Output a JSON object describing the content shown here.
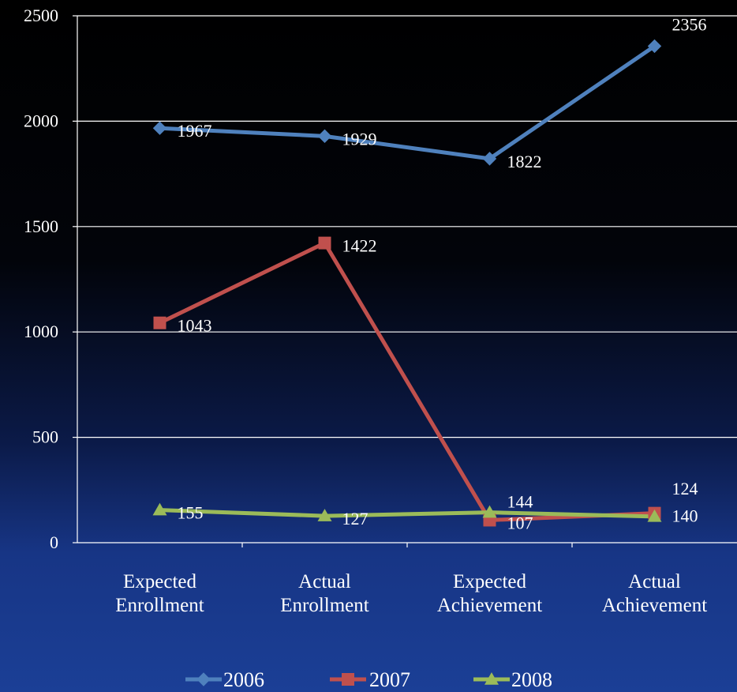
{
  "chart_data": {
    "type": "line",
    "categories": [
      [
        "Expected",
        "Enrollment"
      ],
      [
        "Actual",
        "Enrollment"
      ],
      [
        "Expected",
        "Achievement"
      ],
      [
        "Actual",
        "Achievement"
      ]
    ],
    "ylim": [
      0,
      2500
    ],
    "yticks": [
      "0",
      "500",
      "1000",
      "1500",
      "2000",
      "2500"
    ],
    "grid": true,
    "legend": "bottom",
    "series": [
      {
        "name": "2006",
        "values": [
          1967,
          1929,
          1822,
          2356
        ],
        "labels": [
          "1967",
          "1929",
          "1822",
          "2356"
        ],
        "color": "#4f81bd",
        "marker": "diamond"
      },
      {
        "name": "2007",
        "values": [
          1043,
          1422,
          107,
          140
        ],
        "labels": [
          "1043",
          "1422",
          "107",
          "140"
        ],
        "color": "#c0504d",
        "marker": "square"
      },
      {
        "name": "2008",
        "values": [
          155,
          127,
          144,
          124
        ],
        "labels": [
          "155",
          "127",
          "144",
          "124"
        ],
        "color": "#9bbb59",
        "marker": "triangle"
      }
    ]
  }
}
